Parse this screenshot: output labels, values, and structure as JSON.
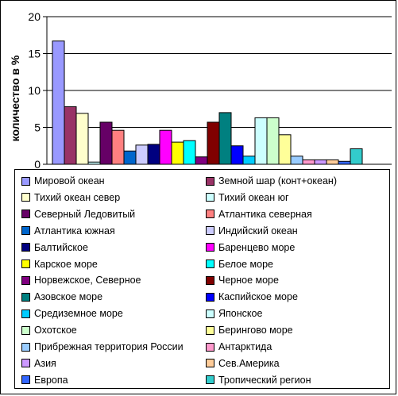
{
  "chart_data": {
    "type": "bar",
    "title": "",
    "xlabel": "",
    "ylabel": "количество в %",
    "ylim": [
      0,
      20
    ],
    "yticks": [
      "0",
      "5",
      "10",
      "15",
      "20"
    ],
    "grid": true,
    "legend_position": "bottom",
    "series": [
      {
        "name": "Мировой океан",
        "value": 16.7,
        "color": "#9999FF"
      },
      {
        "name": "Земной шар (конт+океан)",
        "value": 7.8,
        "color": "#993366"
      },
      {
        "name": "Тихий океан север",
        "value": 6.9,
        "color": "#FFFFCC"
      },
      {
        "name": "Тихий океан юг",
        "value": 0.3,
        "color": "#CCFFFF"
      },
      {
        "name": "Северный Ледовитый",
        "value": 5.7,
        "color": "#660066"
      },
      {
        "name": "Атлантика северная",
        "value": 4.6,
        "color": "#FF8080"
      },
      {
        "name": "Атлантика южная",
        "value": 1.8,
        "color": "#0066CC"
      },
      {
        "name": "Индийский океан",
        "value": 2.6,
        "color": "#CCCCFF"
      },
      {
        "name": "Балтийское",
        "value": 2.7,
        "color": "#000080"
      },
      {
        "name": "Баренцево море",
        "value": 4.6,
        "color": "#FF00FF"
      },
      {
        "name": "Карское море",
        "value": 3.0,
        "color": "#FFFF00"
      },
      {
        "name": "Белое море",
        "value": 3.2,
        "color": "#00FFFF"
      },
      {
        "name": "Норвежское, Северное",
        "value": 1.0,
        "color": "#800080"
      },
      {
        "name": "Черное море",
        "value": 5.7,
        "color": "#800000"
      },
      {
        "name": "Азовское море",
        "value": 7.0,
        "color": "#008080"
      },
      {
        "name": "Каспийское море",
        "value": 2.5,
        "color": "#0000FF"
      },
      {
        "name": "Средиземное море",
        "value": 1.1,
        "color": "#00CCFF"
      },
      {
        "name": "Японское",
        "value": 6.3,
        "color": "#CCFFFF"
      },
      {
        "name": "Охотское",
        "value": 6.3,
        "color": "#CCFFCC"
      },
      {
        "name": "Берингово море",
        "value": 4.0,
        "color": "#FFFF99"
      },
      {
        "name": "Прибрежная территория России",
        "value": 1.1,
        "color": "#99CCFF"
      },
      {
        "name": "Антарктида",
        "value": 0.6,
        "color": "#FF99CC"
      },
      {
        "name": "Азия",
        "value": 0.6,
        "color": "#CC99FF"
      },
      {
        "name": "Сев.Америка",
        "value": 0.6,
        "color": "#FFCC99"
      },
      {
        "name": "Европа",
        "value": 0.4,
        "color": "#3366FF"
      },
      {
        "name": "Тропический регион",
        "value": 2.1,
        "color": "#33CCCC"
      }
    ]
  }
}
